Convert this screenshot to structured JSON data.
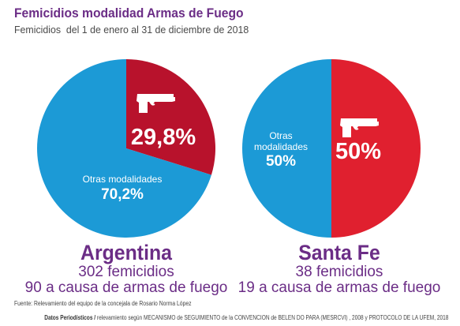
{
  "header": {
    "title": "Femicidios modalidad Armas de Fuego",
    "subtitle": "Femicidios  del 1 de enero al 31 de diciembre de 2018"
  },
  "colors": {
    "purple": "#6b2d86",
    "blue": "#1c9ad6",
    "red_argentina": "#b8122c",
    "red_santafe": "#e0202f"
  },
  "icons": [
    "pistol-icon"
  ],
  "chart_data": [
    {
      "type": "pie",
      "name": "Argentina",
      "slices": [
        {
          "label": "",
          "value": 29.8,
          "value_label": "29,8%",
          "color": "#b8122c",
          "icon": "pistol-icon"
        },
        {
          "label": "Otras modalidades",
          "value": 70.2,
          "value_label": "70,2%",
          "color": "#1c9ad6"
        }
      ],
      "title": "Argentina",
      "lines": [
        "302 femicidios",
        "90 a causa de armas de fuego"
      ]
    },
    {
      "type": "pie",
      "name": "Santa Fe",
      "slices": [
        {
          "label": "",
          "value": 50,
          "value_label": "50%",
          "color": "#e0202f",
          "icon": "pistol-icon"
        },
        {
          "label": "Otras\nmodalidades",
          "value": 50,
          "value_label": "50%",
          "color": "#1c9ad6"
        }
      ],
      "title": "Santa Fe",
      "lines": [
        "38 femicidios",
        "19 a causa de armas de fuego"
      ]
    }
  ],
  "footer": {
    "source": "Fuente: Relevamiento del equipo de la concejala de Rosario Norma López",
    "brand": "Datos Periodísticos /",
    "detail": " relevamiento según MECANISMO de SEGUIMIENTO de la CONVENCION de BELEN DO PARA (MESRCVI) , 2008 y PROTOCOLO DE LA UFEM, 2018"
  }
}
